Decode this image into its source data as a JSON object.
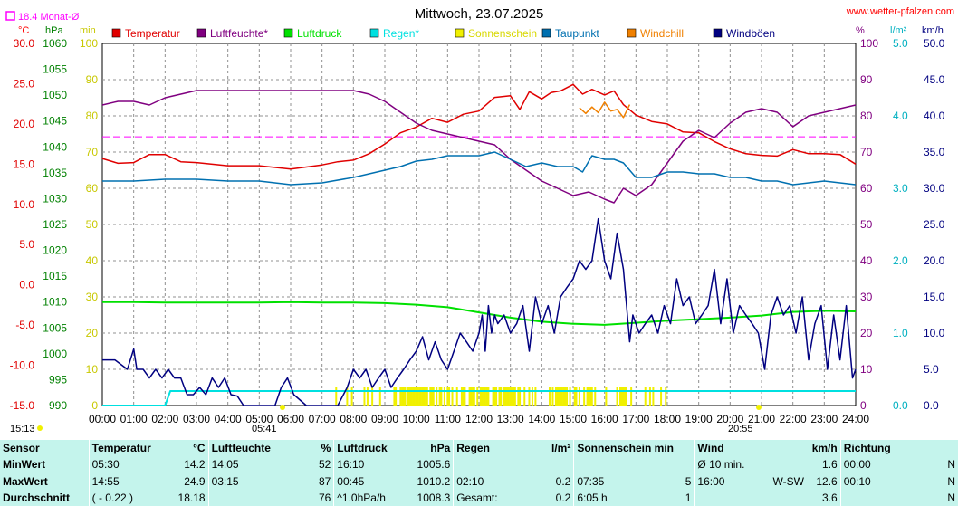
{
  "header": {
    "title": "Mittwoch, 23.07.2025",
    "site": "www.wetter-pfalzen.com",
    "month_avg": "18.4 Monat-Ø",
    "sunrise_left": "15:13",
    "sunrise": "05:41",
    "sunset": "20:55"
  },
  "axes": {
    "temp_unit": "°C",
    "hpa_unit": "hPa",
    "min_unit": "min",
    "pct_unit": "%",
    "lm2_unit": "l/m²",
    "kmh_unit": "km/h",
    "temp_ticks": [
      "30.0",
      "25.0",
      "20.0",
      "15.0",
      "10.0",
      "5.0",
      "0.0",
      "-5.0",
      "-10.0",
      "-15.0"
    ],
    "hpa_ticks": [
      "1060",
      "1055",
      "1050",
      "1045",
      "1040",
      "1035",
      "1030",
      "1025",
      "1020",
      "1015",
      "1010",
      "1005",
      "1000",
      "995",
      "990"
    ],
    "min_ticks": [
      "100",
      "90",
      "80",
      "70",
      "60",
      "50",
      "40",
      "30",
      "20",
      "10",
      "0"
    ],
    "pct_ticks": [
      "100",
      "90",
      "80",
      "70",
      "60",
      "50",
      "40",
      "30",
      "20",
      "10",
      "0"
    ],
    "lm2_ticks": [
      "5.0",
      "4.0",
      "3.0",
      "2.0",
      "1.0",
      "0.0"
    ],
    "kmh_ticks": [
      "50.0",
      "45.0",
      "40.0",
      "35.0",
      "30.0",
      "25.0",
      "20.0",
      "15.0",
      "10.0",
      "5.0",
      "0.0"
    ],
    "x_ticks": [
      "00:00",
      "01:00",
      "02:00",
      "03:00",
      "04:00",
      "05:00",
      "06:00",
      "07:00",
      "08:00",
      "09:00",
      "10:00",
      "11:00",
      "12:00",
      "13:00",
      "14:00",
      "15:00",
      "16:00",
      "17:00",
      "18:00",
      "19:00",
      "20:00",
      "21:00",
      "22:00",
      "23:00",
      "24:00"
    ]
  },
  "legend": [
    {
      "label": "Temperatur",
      "color": "#e00000"
    },
    {
      "label": "Luftfeuchte*",
      "color": "#800080"
    },
    {
      "label": "Luftdruck",
      "color": "#00e000"
    },
    {
      "label": "Regen*",
      "color": "#00e0e0"
    },
    {
      "label": "Sonnenschein",
      "color": "#f0f000"
    },
    {
      "label": "Taupunkt",
      "color": "#0070b0"
    },
    {
      "label": "Windchill",
      "color": "#f08000"
    },
    {
      "label": "Windböen",
      "color": "#000080"
    }
  ],
  "chart_data": {
    "type": "line",
    "x_unit": "hour",
    "xlim": [
      0,
      24
    ],
    "reference_line": {
      "value_c": 18.4,
      "color": "#ff00ff"
    },
    "series": [
      {
        "name": "Temperatur",
        "axis": "°C",
        "color": "#e00000",
        "x": [
          0,
          0.5,
          1,
          1.5,
          2,
          2.5,
          3,
          4,
          5,
          6,
          7,
          7.5,
          8,
          8.5,
          9,
          9.5,
          10,
          10.5,
          11,
          11.5,
          12,
          12.5,
          13,
          13.3,
          13.6,
          14,
          14.3,
          14.6,
          15,
          15.3,
          15.6,
          16,
          16.3,
          16.6,
          17,
          17.5,
          18,
          18.5,
          19,
          19.5,
          20,
          20.5,
          21,
          21.5,
          22,
          22.5,
          23,
          23.5,
          24
        ],
        "y": [
          15.7,
          15.1,
          15.2,
          16.2,
          16.2,
          15.3,
          15.2,
          14.8,
          14.8,
          14.4,
          14.9,
          15.3,
          15.5,
          16.3,
          17.5,
          18.9,
          19.6,
          20.7,
          20.2,
          21.2,
          21.6,
          23.3,
          23.5,
          21.8,
          24.0,
          23.1,
          23.9,
          24.1,
          24.9,
          23.7,
          24.3,
          23.6,
          24.1,
          22.4,
          21.1,
          20.3,
          20.0,
          19.0,
          18.9,
          17.8,
          16.9,
          16.3,
          16.1,
          16.0,
          16.8,
          16.3,
          16.3,
          16.2,
          15.0
        ]
      },
      {
        "name": "Windchill",
        "axis": "°C",
        "color": "#f08000",
        "x": [
          15.2,
          15.4,
          15.6,
          15.8,
          16,
          16.2,
          16.4,
          16.6,
          16.8
        ],
        "y": [
          22.0,
          21.3,
          22.1,
          21.4,
          22.7,
          21.6,
          21.8,
          20.8,
          22.4
        ]
      },
      {
        "name": "Luftfeuchte*",
        "axis": "%",
        "color": "#800080",
        "x": [
          0,
          0.5,
          1,
          1.5,
          2,
          2.5,
          3,
          4,
          5,
          6,
          7,
          7.5,
          8,
          8.5,
          9,
          9.5,
          10,
          10.5,
          11,
          11.5,
          12,
          12.5,
          13,
          13.5,
          14,
          14.5,
          15,
          15.5,
          16,
          16.3,
          16.6,
          17,
          17.5,
          18,
          18.5,
          19,
          19.5,
          20,
          20.5,
          21,
          21.5,
          22,
          22.5,
          23,
          23.5,
          24
        ],
        "y": [
          83,
          84,
          84,
          83,
          85,
          86,
          87,
          87,
          87,
          87,
          87,
          87,
          87,
          86,
          84,
          81,
          78,
          76,
          75,
          74,
          73,
          72,
          68,
          65,
          62,
          60,
          58,
          59,
          57,
          56,
          60,
          58,
          61,
          67,
          73,
          76,
          74,
          78,
          81,
          82,
          81,
          77,
          80,
          81,
          82,
          83
        ]
      },
      {
        "name": "Taupunkt",
        "axis": "%",
        "color": "#0070b0",
        "x": [
          0,
          1,
          2,
          3,
          4,
          5,
          6,
          7,
          8,
          8.5,
          9,
          9.5,
          10,
          10.5,
          11,
          11.5,
          12,
          12.5,
          13,
          13.5,
          14,
          14.5,
          15,
          15.3,
          15.6,
          16,
          16.3,
          16.6,
          17,
          17.5,
          18,
          18.5,
          19,
          19.5,
          20,
          20.5,
          21,
          21.5,
          22,
          22.5,
          23,
          23.5,
          24
        ],
        "y": [
          62,
          62,
          62.5,
          62.5,
          62,
          62,
          61,
          61.5,
          63,
          64,
          65,
          66,
          67.5,
          68,
          69,
          69,
          69,
          70,
          68,
          66,
          67,
          66,
          66,
          64.5,
          69,
          68,
          68,
          67,
          63,
          63,
          64.5,
          64.5,
          64,
          64,
          63,
          63,
          62,
          62,
          61,
          61.5,
          62,
          61.5,
          61
        ]
      },
      {
        "name": "Luftdruck",
        "axis": "hPa",
        "color": "#00e000",
        "x": [
          0,
          1,
          2,
          3,
          4,
          5,
          6,
          7,
          8,
          9,
          10,
          11,
          12,
          13,
          14,
          15,
          16,
          17,
          18,
          19,
          20,
          21,
          22,
          23,
          24
        ],
        "y": [
          1010.0,
          1010.0,
          1009.9,
          1009.9,
          1009.9,
          1009.9,
          1010.0,
          1009.9,
          1009.9,
          1009.8,
          1009.5,
          1009.0,
          1008.0,
          1007.0,
          1006.2,
          1005.8,
          1005.6,
          1006.0,
          1006.4,
          1006.7,
          1007.0,
          1007.4,
          1008.1,
          1008.3,
          1008.2
        ]
      },
      {
        "name": "Regen*",
        "axis": "l/m²",
        "color": "#00e0e0",
        "x": [
          0,
          1,
          2,
          2.166,
          2.5,
          3,
          3.5,
          4,
          5,
          6,
          7,
          8,
          9,
          10,
          11,
          12,
          13,
          14,
          15,
          16,
          17,
          18,
          19,
          20,
          21,
          22,
          23,
          24
        ],
        "y": [
          0,
          0,
          0,
          0.2,
          0.2,
          0.2,
          0.2,
          0.2,
          0.2,
          0.2,
          0.2,
          0.2,
          0.2,
          0.2,
          0.2,
          0.2,
          0.2,
          0.2,
          0.2,
          0.2,
          0.2,
          0.2,
          0.2,
          0.2,
          0.2,
          0.2,
          0.2,
          0.2
        ]
      },
      {
        "name": "Windböen",
        "axis": "km/h",
        "color": "#000080",
        "x": [
          0,
          0.4,
          0.8,
          1,
          1.1,
          1.3,
          1.5,
          1.7,
          1.9,
          2.1,
          2.3,
          2.5,
          2.7,
          2.9,
          3.1,
          3.3,
          3.5,
          3.7,
          3.9,
          4.1,
          4.3,
          4.5,
          5.5,
          5.7,
          5.9,
          6.1,
          6.5,
          7,
          7.5,
          7.8,
          8,
          8.2,
          8.4,
          8.6,
          8.8,
          9,
          9.2,
          9.4,
          9.6,
          9.8,
          10,
          10.2,
          10.4,
          10.6,
          10.8,
          11,
          11.2,
          11.4,
          11.6,
          11.8,
          12,
          12.1,
          12.2,
          12.3,
          12.4,
          12.5,
          12.6,
          12.8,
          13,
          13.2,
          13.4,
          13.6,
          13.8,
          14,
          14.2,
          14.4,
          14.6,
          14.8,
          15,
          15.2,
          15.4,
          15.6,
          15.8,
          16,
          16.2,
          16.4,
          16.6,
          16.8,
          16.9,
          17.1,
          17.3,
          17.5,
          17.7,
          17.9,
          18.1,
          18.3,
          18.5,
          18.7,
          18.9,
          19.1,
          19.3,
          19.5,
          19.7,
          19.9,
          20.1,
          20.3,
          20.5,
          20.7,
          20.9,
          21.1,
          21.3,
          21.5,
          21.7,
          21.9,
          22.1,
          22.3,
          22.5,
          22.7,
          22.9,
          23.1,
          23.3,
          23.5,
          23.7,
          23.9,
          24
        ],
        "y": [
          6.3,
          6.3,
          5.0,
          7.8,
          5.0,
          5.0,
          3.8,
          5.0,
          3.8,
          5.0,
          3.8,
          3.8,
          1.5,
          1.5,
          2.5,
          1.5,
          3.8,
          2.5,
          3.8,
          1.5,
          1.3,
          0,
          0,
          2.5,
          3.8,
          1.5,
          0,
          0,
          0,
          2.5,
          5.0,
          3.8,
          5.0,
          2.5,
          3.8,
          5.0,
          2.5,
          3.8,
          5.0,
          6.3,
          7.5,
          9.5,
          6.3,
          8.8,
          6.3,
          5.0,
          7.5,
          10.0,
          8.8,
          7.5,
          10.0,
          12.5,
          7.5,
          13.8,
          10.0,
          12.5,
          11.3,
          12.5,
          10.0,
          11.3,
          13.8,
          7.5,
          15.0,
          11.3,
          13.8,
          10.0,
          15.0,
          16.3,
          17.5,
          20.0,
          18.8,
          20.0,
          25.8,
          20.0,
          17.5,
          23.8,
          18.8,
          8.8,
          12.5,
          10.0,
          11.3,
          12.5,
          10.0,
          13.8,
          11.3,
          17.5,
          13.8,
          15.0,
          11.3,
          12.5,
          13.8,
          18.8,
          11.3,
          17.5,
          10.0,
          13.8,
          12.5,
          11.3,
          10.0,
          5.0,
          12.5,
          15.0,
          12.5,
          13.8,
          10.0,
          15.0,
          6.3,
          11.3,
          13.8,
          5.0,
          12.5,
          6.3,
          13.8,
          3.8,
          5.0
        ]
      }
    ],
    "sunshine_x": [
      7.45,
      7.8,
      7.95,
      8.35,
      8.45,
      8.6,
      8.85,
      9.3,
      9.35,
      9.5,
      9.55,
      9.6,
      9.65,
      9.75,
      9.8,
      9.85,
      9.9,
      9.95,
      10.0,
      10.05,
      10.1,
      10.15,
      10.2,
      10.25,
      10.3,
      10.35,
      10.45,
      10.5,
      10.55,
      10.65,
      10.75,
      10.8,
      10.9,
      11.0,
      11.05,
      11.15,
      11.3,
      11.45,
      11.5,
      11.55,
      11.7,
      11.75,
      11.8,
      11.85,
      11.95,
      12.05,
      12.1,
      12.15,
      12.2,
      12.25,
      12.3,
      12.45,
      12.5,
      12.55,
      12.65,
      12.7,
      12.8,
      12.85,
      12.9,
      12.95,
      13.0,
      13.05,
      13.1,
      13.15,
      13.25,
      13.3,
      13.45,
      13.6,
      13.7,
      13.8,
      14.25,
      14.35,
      14.45,
      14.5,
      14.55,
      14.6,
      14.65,
      14.7,
      14.75,
      14.8,
      14.9,
      15.05,
      15.1,
      15.2,
      15.35,
      15.45,
      15.5,
      15.55,
      15.6,
      15.7,
      16.05,
      16.4,
      16.5,
      16.55,
      16.6,
      16.65,
      16.7,
      16.85,
      17.3,
      17.45,
      17.55,
      17.8,
      17.95
    ]
  },
  "stats": {
    "header": {
      "sensor": "Sensor",
      "temp": "Temperatur",
      "temp_unit": "°C",
      "hum": "Luftfeuchte",
      "hum_unit": "%",
      "press": "Luftdruck",
      "press_unit": "hPa",
      "rain": "Regen",
      "rain_unit": "l/m²",
      "sun": "Sonnenschein min",
      "wind": "Wind",
      "wind_unit": "km/h",
      "dir": "Richtung"
    },
    "rows": [
      {
        "label": "MinWert",
        "temp_t": "05:30",
        "temp_v": "14.2",
        "hum_t": "14:05",
        "hum_v": "52",
        "press_t": "16:10",
        "press_v": "1005.6",
        "rain_t": "",
        "rain_v": "",
        "sun_t": "",
        "sun_v": "",
        "wind_t": "Ø 10 min.",
        "wind_d": "",
        "wind_v": "1.6",
        "dir_t": "00:00",
        "dir_v": "N"
      },
      {
        "label": "MaxWert",
        "temp_t": "14:55",
        "temp_v": "24.9",
        "hum_t": "03:15",
        "hum_v": "87",
        "press_t": "00:45",
        "press_v": "1010.2",
        "rain_t": "02:10",
        "rain_v": "0.2",
        "sun_t": "07:35",
        "sun_v": "5",
        "wind_t": "16:00",
        "wind_d": "W-SW",
        "wind_v": "12.6",
        "dir_t": "00:10",
        "dir_v": "N"
      },
      {
        "label": "Durchschnitt",
        "temp_t": "( - 0.22 )",
        "temp_v": "18.18",
        "hum_t": "",
        "hum_v": "76",
        "press_t": "^1.0hPa/h",
        "press_v": "1008.3",
        "rain_t": "Gesamt:",
        "rain_v": "0.2",
        "sun_t": "6:05 h",
        "sun_v": "1",
        "wind_t": "",
        "wind_d": "",
        "wind_v": "3.6",
        "dir_t": "",
        "dir_v": "N"
      }
    ]
  }
}
